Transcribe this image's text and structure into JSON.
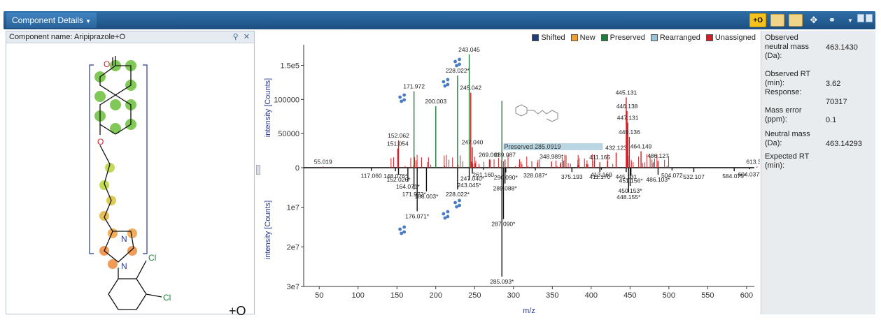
{
  "window": {
    "title": "Component Details",
    "toolbar": {
      "plus_o_label": "+O"
    }
  },
  "left_panel": {
    "component_label": "Component name: Aripiprazole+O",
    "pin_icon": "pin-icon",
    "close_icon": "close-icon",
    "structure": {
      "atom_o_top": "O",
      "atom_o_ether": "O",
      "atom_n1": "N",
      "atom_n2": "N",
      "atom_cl1": "Cl",
      "atom_cl2": "Cl",
      "modification_label": "+O"
    }
  },
  "legend": [
    {
      "label": "Shifted",
      "color": "#1f3f7a"
    },
    {
      "label": "New",
      "color": "#f0a030"
    },
    {
      "label": "Preserved",
      "color": "#1e7d3a"
    },
    {
      "label": "Rearranged",
      "color": "#9ec3d8"
    },
    {
      "label": "Unassigned",
      "color": "#d21f26"
    }
  ],
  "chart_data": {
    "type": "bar",
    "xlabel": "m/z",
    "ylabel_top": "intensity [Counts]",
    "ylabel_bottom": "intensity [Counts]",
    "x_range": [
      30,
      610
    ],
    "x_ticks": [
      "50",
      "100",
      "150",
      "200",
      "250",
      "300",
      "350",
      "400",
      "450",
      "500",
      "550",
      "600"
    ],
    "y_top_ticks": [
      "0",
      "50000",
      "100000",
      "1.5e5"
    ],
    "y_top_range": [
      0,
      170000
    ],
    "y_bottom_ticks": [
      "1e7",
      "2e7",
      "3e7"
    ],
    "y_bottom_range": [
      0,
      30000000
    ],
    "highlight_label": "Preserved 285.0919",
    "top_peaks": [
      {
        "x": 55.019,
        "y": 1500,
        "label": "55.019",
        "color": "#d21f26"
      },
      {
        "x": 151.054,
        "y": 28000,
        "label": "151.054",
        "color": "#d21f26"
      },
      {
        "x": 152.062,
        "y": 40000,
        "label": "152.062",
        "color": "#d21f26"
      },
      {
        "x": 171.972,
        "y": 112000,
        "label": "171.972",
        "color": "#1e7d3a"
      },
      {
        "x": 200.003,
        "y": 90000,
        "label": "200.003",
        "color": "#1e7d3a"
      },
      {
        "x": 228.022,
        "y": 135000,
        "label": "228.022*",
        "color": "#1e7d3a"
      },
      {
        "x": 243.045,
        "y": 166000,
        "label": "243.045",
        "color": "#1e7d3a"
      },
      {
        "x": 245.042,
        "y": 110000,
        "label": "245.042",
        "color": "#d21f26"
      },
      {
        "x": 247.04,
        "y": 30000,
        "label": "247.040",
        "color": "#d21f26"
      },
      {
        "x": 269.061,
        "y": 12000,
        "label": "269.061",
        "color": "#d21f26"
      },
      {
        "x": 285.092,
        "y": 98000,
        "label": "",
        "color": "#1e7d3a"
      },
      {
        "x": 289.087,
        "y": 12000,
        "label": "289.087",
        "color": "#d21f26"
      },
      {
        "x": 348.989,
        "y": 9000,
        "label": "348.989*",
        "color": "#d21f26"
      },
      {
        "x": 411.165,
        "y": 8000,
        "label": "411.165",
        "color": "#d21f26"
      },
      {
        "x": 432.123,
        "y": 22000,
        "label": "432.123",
        "color": "#d21f26"
      },
      {
        "x": 445.131,
        "y": 103000,
        "label": "445.131",
        "color": "#d21f26"
      },
      {
        "x": 446.138,
        "y": 83000,
        "label": "446.138",
        "color": "#d21f26"
      },
      {
        "x": 447.131,
        "y": 66000,
        "label": "447.131",
        "color": "#d21f26"
      },
      {
        "x": 449.136,
        "y": 45000,
        "label": "449.136",
        "color": "#d21f26"
      },
      {
        "x": 464.149,
        "y": 24000,
        "label": "464.149",
        "color": "#d21f26"
      },
      {
        "x": 486.127,
        "y": 10000,
        "label": "486.127",
        "color": "#d21f26"
      },
      {
        "x": 613.341,
        "y": 1500,
        "label": "613.341",
        "color": "#d21f26"
      }
    ],
    "bottom_peaks": [
      {
        "x": 117.06,
        "y": 800000,
        "label": "117.060"
      },
      {
        "x": 148.076,
        "y": 900000,
        "label": "148.076*"
      },
      {
        "x": 152.026,
        "y": 1800000,
        "label": "152.026*"
      },
      {
        "x": 164.071,
        "y": 3500000,
        "label": "164.071*"
      },
      {
        "x": 171.972,
        "y": 5500000,
        "label": "171.972*"
      },
      {
        "x": 176.071,
        "y": 11000000,
        "label": "176.071*"
      },
      {
        "x": 188.003,
        "y": 6000000,
        "label": "188.003*"
      },
      {
        "x": 228.022,
        "y": 5500000,
        "label": "228.022*"
      },
      {
        "x": 243.045,
        "y": 3200000,
        "label": "243.045*"
      },
      {
        "x": 247.04,
        "y": 1500000,
        "label": "247.040*"
      },
      {
        "x": 261.16,
        "y": 500000,
        "label": "261.160"
      },
      {
        "x": 285.093,
        "y": 27500000,
        "label": "285.093*"
      },
      {
        "x": 287.09,
        "y": 13000000,
        "label": "287.090*"
      },
      {
        "x": 289.088,
        "y": 4000000,
        "label": "289.088*"
      },
      {
        "x": 290.09,
        "y": 1200000,
        "label": "290.090*"
      },
      {
        "x": 328.087,
        "y": 700000,
        "label": "328.087*"
      },
      {
        "x": 375.193,
        "y": 1100000,
        "label": "375.193"
      },
      {
        "x": 411.17,
        "y": 1100000,
        "label": "411.170"
      },
      {
        "x": 413.169,
        "y": 500000,
        "label": "413.169"
      },
      {
        "x": 445.131,
        "y": 1100000,
        "label": "445.131"
      },
      {
        "x": 448.155,
        "y": 6200000,
        "label": "448.155*"
      },
      {
        "x": 450.153,
        "y": 4600000,
        "label": "450.153*"
      },
      {
        "x": 451.156,
        "y": 2000000,
        "label": "451.156*"
      },
      {
        "x": 486.103,
        "y": 1800000,
        "label": "486.103*"
      },
      {
        "x": 504.072,
        "y": 700000,
        "label": "504.072"
      },
      {
        "x": 532.107,
        "y": 1100000,
        "label": "532.107"
      },
      {
        "x": 584.075,
        "y": 900000,
        "label": "584.075*"
      },
      {
        "x": 604.037,
        "y": 400000,
        "label": "604.037*"
      }
    ]
  },
  "properties": [
    {
      "label": "Observed neutral mass (Da):",
      "value": "463.1430"
    },
    {
      "label": "Observed RT (min):",
      "value": "3.62"
    },
    {
      "label": "Response:",
      "value": "70317"
    },
    {
      "label": "Mass error (ppm):",
      "value": "0.1"
    },
    {
      "label": "Neutral mass (Da):",
      "value": "463.14293"
    },
    {
      "label": "Expected RT (min):",
      "value": ""
    }
  ]
}
